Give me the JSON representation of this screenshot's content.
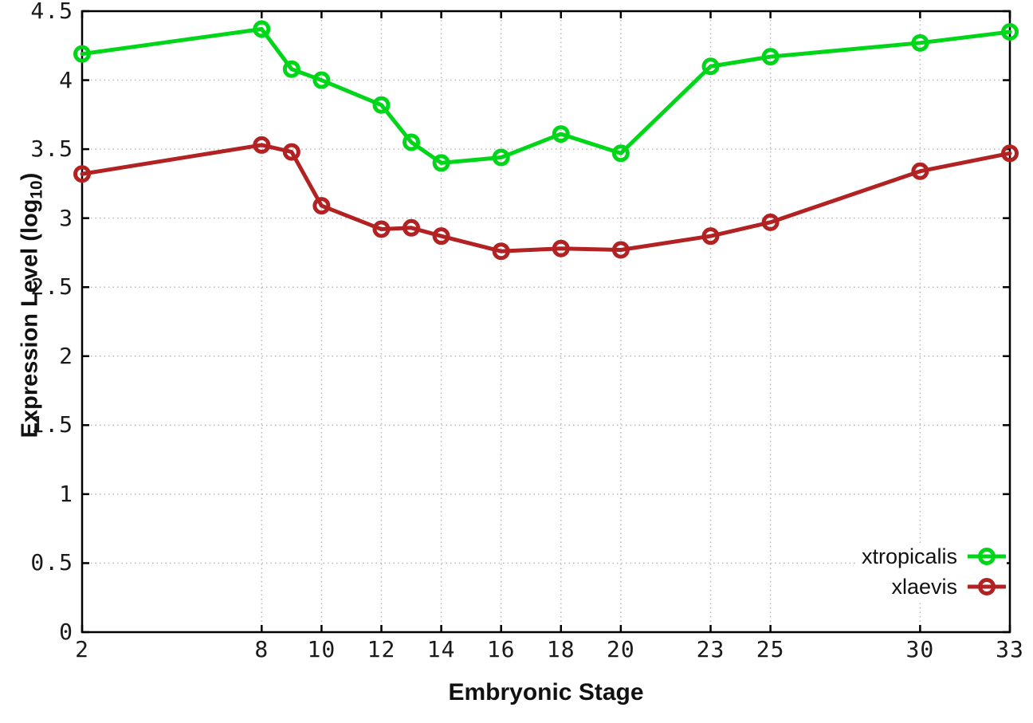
{
  "chart_data": {
    "type": "line",
    "title": "",
    "xlabel": "Embryonic Stage",
    "ylabel": "Expression Level (log10)",
    "ylabel_parts": {
      "prefix": "Expression Level (log",
      "subscript": "10",
      "suffix": ")"
    },
    "x": [
      2,
      8,
      9,
      10,
      12,
      13,
      14,
      16,
      18,
      20,
      23,
      25,
      30,
      33
    ],
    "series": [
      {
        "name": "xtropicalis",
        "color": "#00d619",
        "marker": "open-circle",
        "values": [
          4.19,
          4.37,
          4.08,
          4.0,
          3.82,
          3.55,
          3.4,
          3.44,
          3.61,
          3.47,
          4.1,
          4.17,
          4.27,
          4.35
        ]
      },
      {
        "name": "xlaevis",
        "color": "#b22222",
        "marker": "open-circle",
        "values": [
          3.32,
          3.53,
          3.48,
          3.09,
          2.92,
          2.93,
          2.87,
          2.76,
          2.78,
          2.77,
          2.87,
          2.97,
          3.34,
          3.47
        ]
      }
    ],
    "x_ticks": [
      2,
      8,
      10,
      12,
      14,
      16,
      18,
      20,
      23,
      25,
      30,
      33
    ],
    "y_ticks": [
      0,
      0.5,
      1,
      1.5,
      2,
      2.5,
      3,
      3.5,
      4,
      4.5
    ],
    "xlim": [
      2,
      33
    ],
    "ylim": [
      0,
      4.5
    ],
    "grid": true,
    "grid_style": "dotted",
    "legend_position": "bottom-right",
    "colors": {
      "axis": "#000000",
      "grid": "#b9b9b9",
      "text": "#1a1a1a",
      "background": "#ffffff"
    }
  }
}
